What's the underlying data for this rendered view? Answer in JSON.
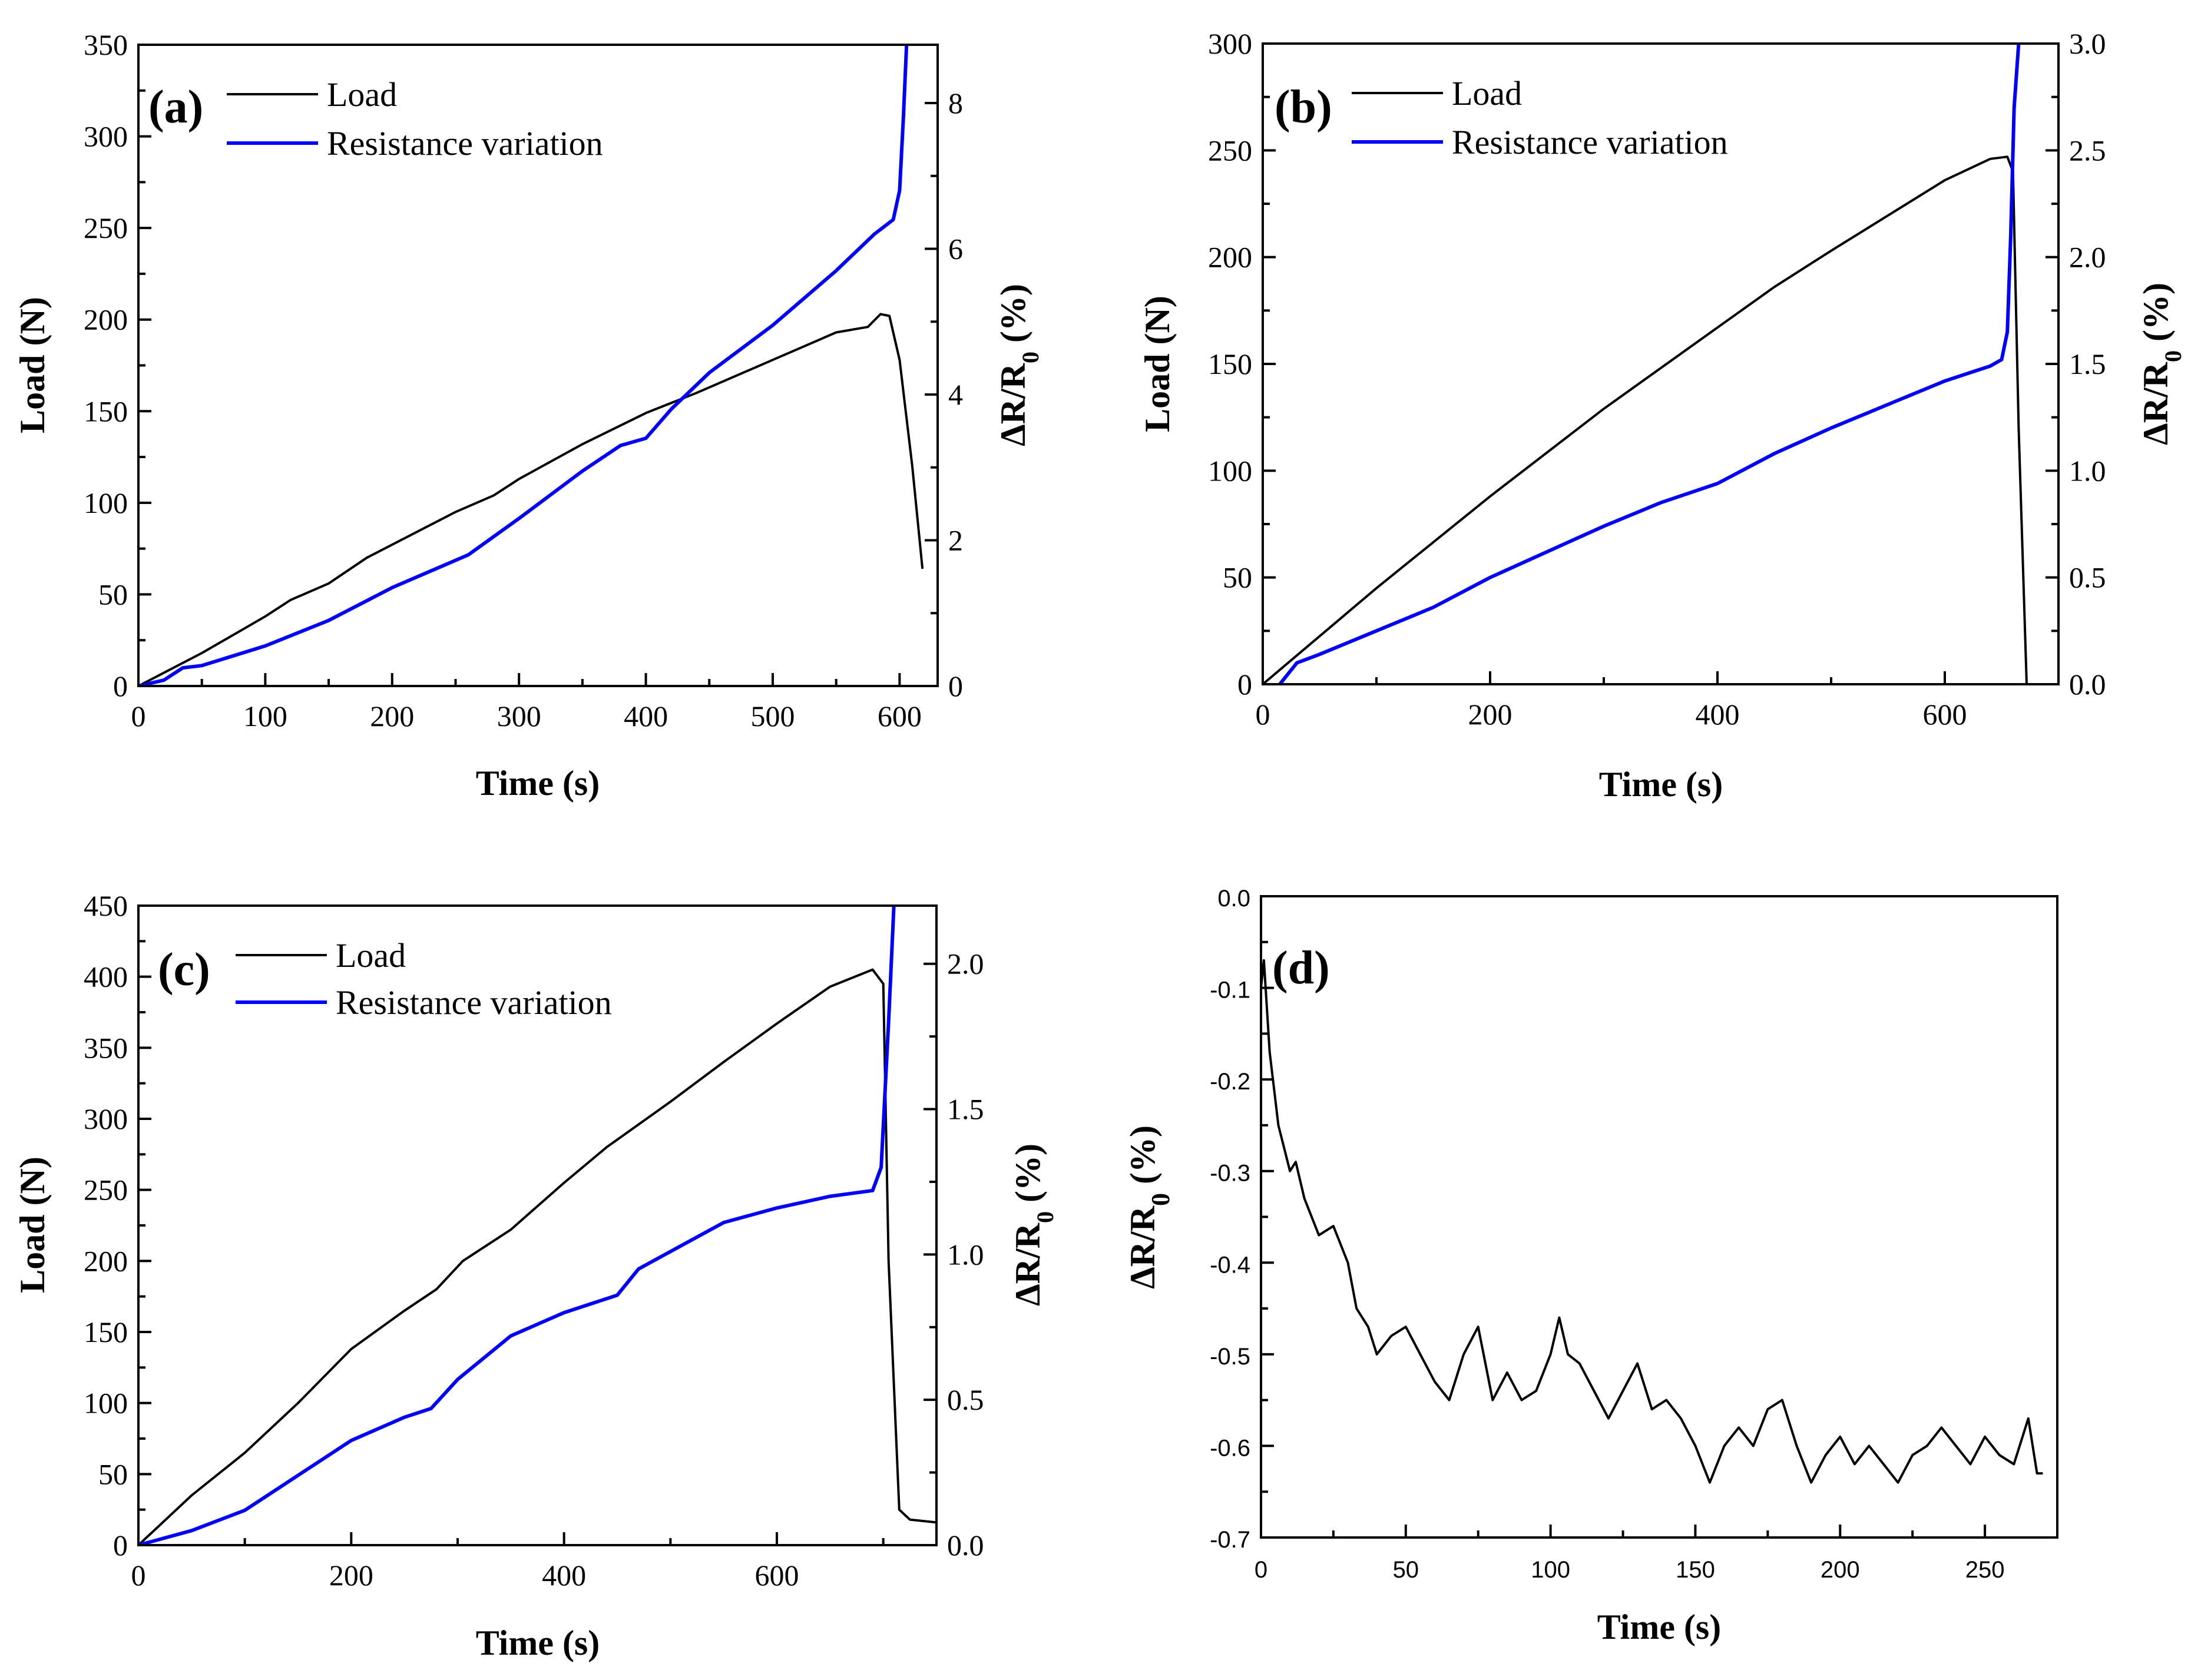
{
  "chart_data": [
    {
      "id": "a",
      "type": "line",
      "panel_label": "(a)",
      "xlabel": "Time (s)",
      "ylabel": "Load (N)",
      "y2label": "ΔR/R0 (%)",
      "xlim": [
        0,
        630
      ],
      "ylim": [
        0,
        350
      ],
      "y2lim": [
        0,
        8.8
      ],
      "xticks": [
        0,
        100,
        200,
        300,
        400,
        500,
        600
      ],
      "yticks": [
        0,
        50,
        100,
        150,
        200,
        250,
        300,
        350
      ],
      "y2ticks": [
        0,
        2,
        4,
        6,
        8
      ],
      "legend": [
        "Load",
        "Resistance variation"
      ],
      "series": [
        {
          "name": "Load",
          "axis": "left",
          "color": "#000000",
          "x": [
            0,
            50,
            100,
            120,
            150,
            180,
            250,
            280,
            300,
            350,
            400,
            440,
            500,
            550,
            575,
            585,
            592,
            600,
            610,
            618
          ],
          "y": [
            0,
            18,
            38,
            47,
            56,
            70,
            95,
            104,
            113,
            132,
            149,
            160,
            178,
            193,
            196,
            203,
            202,
            178,
            120,
            64
          ]
        },
        {
          "name": "Resistance variation",
          "axis": "right",
          "color": "#0000ff",
          "x": [
            0,
            20,
            35,
            50,
            100,
            150,
            200,
            260,
            300,
            350,
            380,
            400,
            420,
            450,
            500,
            550,
            580,
            595,
            600,
            603,
            606
          ],
          "y": [
            0,
            0.08,
            0.25,
            0.28,
            0.55,
            0.9,
            1.35,
            1.8,
            2.3,
            2.95,
            3.3,
            3.4,
            3.8,
            4.3,
            4.95,
            5.7,
            6.2,
            6.4,
            6.8,
            7.8,
            9
          ]
        }
      ]
    },
    {
      "id": "b",
      "type": "line",
      "panel_label": "(b)",
      "xlabel": "Time (s)",
      "ylabel": "Load (N)",
      "y2label": "ΔR/R0 (%)",
      "xlim": [
        0,
        700
      ],
      "ylim": [
        0,
        300
      ],
      "y2lim": [
        0,
        3.0
      ],
      "xticks": [
        0,
        200,
        400,
        600
      ],
      "yticks": [
        0,
        50,
        100,
        150,
        200,
        250,
        300
      ],
      "y2ticks": [
        0.0,
        0.5,
        1.0,
        1.5,
        2.0,
        2.5,
        3.0
      ],
      "legend": [
        "Load",
        "Resistance variation"
      ],
      "series": [
        {
          "name": "Load",
          "axis": "left",
          "color": "#000000",
          "x": [
            0,
            100,
            200,
            300,
            400,
            450,
            500,
            600,
            640,
            655,
            660,
            665,
            672
          ],
          "y": [
            0,
            45,
            88,
            129,
            167,
            186,
            203,
            236,
            246,
            247,
            240,
            120,
            0
          ]
        },
        {
          "name": "Resistance variation",
          "axis": "right",
          "color": "#0000ff",
          "x": [
            15,
            30,
            50,
            100,
            150,
            200,
            250,
            300,
            350,
            400,
            450,
            500,
            550,
            600,
            640,
            650,
            655,
            658,
            661,
            665
          ],
          "y": [
            0,
            0.1,
            0.14,
            0.25,
            0.36,
            0.5,
            0.62,
            0.74,
            0.85,
            0.94,
            1.08,
            1.2,
            1.31,
            1.42,
            1.49,
            1.52,
            1.65,
            2.1,
            2.7,
            3.0
          ]
        }
      ]
    },
    {
      "id": "c",
      "type": "line",
      "panel_label": "(c)",
      "xlabel": "Time (s)",
      "ylabel": "Load (N)",
      "y2label": "ΔR/R0 (%)",
      "xlim": [
        0,
        750
      ],
      "ylim": [
        0,
        450
      ],
      "y2lim": [
        0,
        2.2
      ],
      "xticks": [
        0,
        200,
        400,
        600
      ],
      "yticks": [
        0,
        50,
        100,
        150,
        200,
        250,
        300,
        350,
        400,
        450
      ],
      "y2ticks": [
        0.0,
        0.5,
        1.0,
        1.5,
        2.0
      ],
      "legend": [
        "Load",
        "Resistance variation"
      ],
      "series": [
        {
          "name": "Load",
          "axis": "left",
          "color": "#000000",
          "x": [
            0,
            50,
            100,
            150,
            200,
            250,
            280,
            305,
            350,
            400,
            440,
            500,
            550,
            600,
            650,
            690,
            700,
            705,
            715,
            725,
            750
          ],
          "y": [
            0,
            35,
            65,
            100,
            138,
            165,
            180,
            200,
            222,
            255,
            280,
            312,
            340,
            367,
            393,
            405,
            395,
            200,
            25,
            18,
            16
          ]
        },
        {
          "name": "Resistance variation",
          "axis": "right",
          "color": "#0000ff",
          "x": [
            0,
            50,
            100,
            150,
            200,
            250,
            275,
            300,
            350,
            400,
            450,
            470,
            500,
            550,
            600,
            650,
            690,
            698,
            705,
            710
          ],
          "y": [
            0,
            0.05,
            0.12,
            0.24,
            0.36,
            0.44,
            0.47,
            0.57,
            0.72,
            0.8,
            0.86,
            0.95,
            1.01,
            1.11,
            1.16,
            1.2,
            1.22,
            1.3,
            1.8,
            2.2
          ]
        }
      ]
    },
    {
      "id": "d",
      "type": "line",
      "panel_label": "(d)",
      "xlabel": "Time (s)",
      "ylabel": "ΔR/R0 (%)",
      "xlim": [
        0,
        275
      ],
      "ylim": [
        -0.7,
        0.0
      ],
      "xticks": [
        0,
        50,
        100,
        150,
        200,
        250
      ],
      "yticks": [
        0.0,
        -0.1,
        -0.2,
        -0.3,
        -0.4,
        -0.5,
        -0.6,
        -0.7
      ],
      "series": [
        {
          "name": "ΔR/R0",
          "axis": "left",
          "color": "#000000",
          "x": [
            0,
            1,
            3,
            6,
            10,
            12,
            15,
            20,
            25,
            30,
            33,
            37,
            40,
            45,
            50,
            55,
            60,
            65,
            70,
            75,
            80,
            85,
            90,
            95,
            100,
            103,
            106,
            110,
            115,
            120,
            125,
            130,
            135,
            140,
            145,
            150,
            155,
            160,
            165,
            170,
            175,
            180,
            185,
            190,
            195,
            200,
            205,
            210,
            215,
            220,
            225,
            230,
            235,
            240,
            245,
            250,
            255,
            260,
            265,
            268,
            270
          ],
          "y": [
            -0.1,
            -0.07,
            -0.17,
            -0.25,
            -0.3,
            -0.29,
            -0.33,
            -0.37,
            -0.36,
            -0.4,
            -0.45,
            -0.47,
            -0.5,
            -0.48,
            -0.47,
            -0.5,
            -0.53,
            -0.55,
            -0.5,
            -0.47,
            -0.55,
            -0.52,
            -0.55,
            -0.54,
            -0.5,
            -0.46,
            -0.5,
            -0.51,
            -0.54,
            -0.57,
            -0.54,
            -0.51,
            -0.56,
            -0.55,
            -0.57,
            -0.6,
            -0.64,
            -0.6,
            -0.58,
            -0.6,
            -0.56,
            -0.55,
            -0.6,
            -0.64,
            -0.61,
            -0.59,
            -0.62,
            -0.6,
            -0.62,
            -0.64,
            -0.61,
            -0.6,
            -0.58,
            -0.6,
            -0.62,
            -0.59,
            -0.61,
            -0.62,
            -0.57,
            -0.63,
            -0.63
          ]
        }
      ]
    }
  ]
}
